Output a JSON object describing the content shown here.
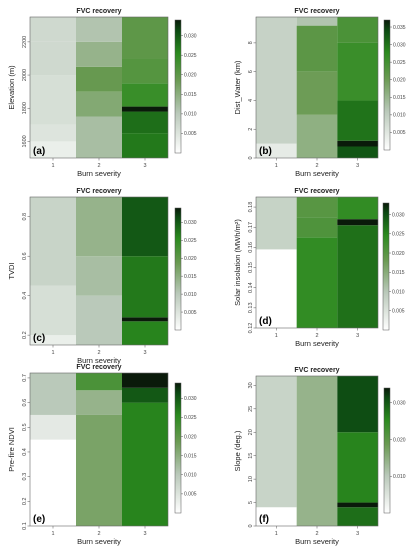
{
  "figure": {
    "panels": [
      {
        "panel_label": "(a)",
        "title": "FVC recovery",
        "xlabel": "Burn severity",
        "ylabel": "Elevation (m)",
        "x_ticks": [
          "1",
          "2",
          "3"
        ],
        "y_ticks": [
          "1600",
          "1800",
          "2000",
          "2200"
        ],
        "colorbar_ticks": [
          "0.005",
          "0.010",
          "0.015",
          "0.020",
          "0.025",
          "0.030"
        ]
      },
      {
        "panel_label": "(b)",
        "title": "FVC recovery",
        "xlabel": "Burn severity",
        "ylabel": "Dist_Water (km)",
        "x_ticks": [
          "1",
          "2",
          "3"
        ],
        "y_ticks": [
          "0",
          "2",
          "4",
          "6",
          "8"
        ],
        "colorbar_ticks": [
          "0.005",
          "0.010",
          "0.015",
          "0.020",
          "0.025",
          "0.030",
          "0.035"
        ]
      },
      {
        "panel_label": "(c)",
        "title": "FVC recovery",
        "xlabel": "Burn severity",
        "ylabel": "TVDI",
        "x_ticks": [
          "1",
          "2",
          "3"
        ],
        "y_ticks": [
          "0.2",
          "0.4",
          "0.6",
          "0.8"
        ],
        "colorbar_ticks": [
          "0.005",
          "0.010",
          "0.015",
          "0.020",
          "0.025",
          "0.030"
        ]
      },
      {
        "panel_label": "(d)",
        "title": "FVC recovery",
        "xlabel": "Burn severity",
        "ylabel": "Solar insolation (MWh/m²)",
        "x_ticks": [
          "1",
          "2",
          "3"
        ],
        "y_ticks": [
          "0.12",
          "0.13",
          "0.14",
          "0.15",
          "0.16",
          "0.17",
          "0.18"
        ],
        "colorbar_ticks": [
          "0.005",
          "0.010",
          "0.015",
          "0.020",
          "0.025",
          "0.030"
        ]
      },
      {
        "panel_label": "(e)",
        "title": "FVC recovery",
        "xlabel": "Burn severity",
        "ylabel": "Pre-fire NDVI",
        "x_ticks": [
          "1",
          "2",
          "3"
        ],
        "y_ticks": [
          "0.1",
          "0.2",
          "0.3",
          "0.4",
          "0.5",
          "0.6",
          "0.7"
        ],
        "colorbar_ticks": [
          "0.005",
          "0.010",
          "0.015",
          "0.020",
          "0.025",
          "0.030"
        ]
      },
      {
        "panel_label": "(f)",
        "title": "FVC recovery",
        "xlabel": "Burn severity",
        "ylabel": "Slope (deg.)",
        "x_ticks": [
          "1",
          "2",
          "3"
        ],
        "y_ticks": [
          "0",
          "5",
          "10",
          "15",
          "20",
          "25",
          "30"
        ],
        "colorbar_ticks": [
          "0.010",
          "0.020",
          "0.030"
        ]
      }
    ]
  },
  "colors": {
    "low": "#ffffff",
    "mid_light": "#b9c8b9",
    "mid": "#6a9a52",
    "green": "#2b8a1e",
    "dark": "#0c4a12",
    "darkest": "#0a1a0a"
  },
  "chart_data": [
    {
      "type": "heatmap",
      "title": "FVC recovery",
      "xlabel": "Burn severity",
      "ylabel": "Elevation (m)",
      "categories": [
        "1",
        "2",
        "3"
      ],
      "y_range": [
        1500,
        2350
      ],
      "colorbar_range": [
        0.0,
        0.034
      ],
      "columns": [
        {
          "category": "1",
          "y_start": 1500,
          "bands": [
            {
              "to": 1600,
              "value": 0.003
            },
            {
              "to": 1700,
              "value": 0.005
            },
            {
              "to": 2000,
              "value": 0.006
            },
            {
              "to": 2200,
              "value": 0.007
            },
            {
              "to": 2350,
              "value": 0.007
            }
          ]
        },
        {
          "category": "2",
          "y_start": 1500,
          "bands": [
            {
              "to": 1750,
              "value": 0.012
            },
            {
              "to": 1900,
              "value": 0.016
            },
            {
              "to": 2050,
              "value": 0.019
            },
            {
              "to": 2200,
              "value": 0.014
            },
            {
              "to": 2350,
              "value": 0.011
            }
          ]
        },
        {
          "category": "3",
          "y_start": 1500,
          "bands": [
            {
              "to": 1650,
              "value": 0.027
            },
            {
              "to": 1780,
              "value": 0.028
            },
            {
              "to": 1810,
              "value": 0.034
            },
            {
              "to": 1950,
              "value": 0.024
            },
            {
              "to": 2100,
              "value": 0.021
            },
            {
              "to": 2350,
              "value": 0.02
            }
          ]
        }
      ]
    },
    {
      "type": "heatmap",
      "title": "FVC recovery",
      "xlabel": "Burn severity",
      "ylabel": "Dist_Water (km)",
      "categories": [
        "1",
        "2",
        "3"
      ],
      "y_range": [
        0,
        9.8
      ],
      "colorbar_range": [
        0.0,
        0.037
      ],
      "columns": [
        {
          "category": "1",
          "y_start": 0,
          "bands": [
            {
              "to": 1,
              "value": 0.004
            },
            {
              "to": 9.8,
              "value": 0.009
            }
          ]
        },
        {
          "category": "2",
          "y_start": 0,
          "bands": [
            {
              "to": 3,
              "value": 0.016
            },
            {
              "to": 6,
              "value": 0.02
            },
            {
              "to": 9.2,
              "value": 0.022
            },
            {
              "to": 9.8,
              "value": 0.012
            }
          ]
        },
        {
          "category": "3",
          "y_start": 0,
          "bands": [
            {
              "to": 0.8,
              "value": 0.033
            },
            {
              "to": 1.2,
              "value": 0.037
            },
            {
              "to": 4,
              "value": 0.03
            },
            {
              "to": 8,
              "value": 0.026
            },
            {
              "to": 9.8,
              "value": 0.024
            }
          ]
        }
      ]
    },
    {
      "type": "heatmap",
      "title": "FVC recovery",
      "xlabel": "Burn severity",
      "ylabel": "TVDI",
      "categories": [
        "1",
        "2",
        "3"
      ],
      "y_range": [
        0.15,
        0.9
      ],
      "colorbar_range": [
        0.0,
        0.034
      ],
      "columns": [
        {
          "category": "1",
          "y_start": 0.15,
          "bands": [
            {
              "to": 0.2,
              "value": 0.003
            },
            {
              "to": 0.45,
              "value": 0.006
            },
            {
              "to": 0.9,
              "value": 0.008
            }
          ]
        },
        {
          "category": "2",
          "y_start": 0.15,
          "bands": [
            {
              "to": 0.4,
              "value": 0.01
            },
            {
              "to": 0.6,
              "value": 0.012
            },
            {
              "to": 0.9,
              "value": 0.014
            }
          ]
        },
        {
          "category": "3",
          "y_start": 0.15,
          "bands": [
            {
              "to": 0.27,
              "value": 0.026
            },
            {
              "to": 0.29,
              "value": 0.034
            },
            {
              "to": 0.6,
              "value": 0.027
            },
            {
              "to": 0.9,
              "value": 0.03
            }
          ]
        }
      ]
    },
    {
      "type": "heatmap",
      "title": "FVC recovery",
      "xlabel": "Burn severity",
      "ylabel": "Solar insolation (MWh/m²)",
      "categories": [
        "1",
        "2",
        "3"
      ],
      "y_range": [
        0.12,
        0.185
      ],
      "colorbar_range": [
        0.0,
        0.033
      ],
      "columns": [
        {
          "category": "1",
          "y_start": 0.12,
          "bands": [
            {
              "to": 0.159,
              "value": 0.0
            },
            {
              "to": 0.185,
              "value": 0.008
            }
          ]
        },
        {
          "category": "2",
          "y_start": 0.12,
          "bands": [
            {
              "to": 0.165,
              "value": 0.024
            },
            {
              "to": 0.175,
              "value": 0.021
            },
            {
              "to": 0.185,
              "value": 0.02
            }
          ]
        },
        {
          "category": "3",
          "y_start": 0.12,
          "bands": [
            {
              "to": 0.171,
              "value": 0.027
            },
            {
              "to": 0.174,
              "value": 0.033
            },
            {
              "to": 0.185,
              "value": 0.024
            }
          ]
        }
      ]
    },
    {
      "type": "heatmap",
      "title": "FVC recovery",
      "xlabel": "Burn severity",
      "ylabel": "Pre-fire NDVI",
      "categories": [
        "1",
        "2",
        "3"
      ],
      "y_range": [
        0.1,
        0.72
      ],
      "colorbar_range": [
        0.0,
        0.034
      ],
      "columns": [
        {
          "category": "1",
          "y_start": 0.1,
          "bands": [
            {
              "to": 0.45,
              "value": 0.0
            },
            {
              "to": 0.55,
              "value": 0.004
            },
            {
              "to": 0.72,
              "value": 0.01
            }
          ]
        },
        {
          "category": "2",
          "y_start": 0.1,
          "bands": [
            {
              "to": 0.55,
              "value": 0.017
            },
            {
              "to": 0.65,
              "value": 0.014
            },
            {
              "to": 0.72,
              "value": 0.022
            }
          ]
        },
        {
          "category": "3",
          "y_start": 0.1,
          "bands": [
            {
              "to": 0.6,
              "value": 0.026
            },
            {
              "to": 0.66,
              "value": 0.03
            },
            {
              "to": 0.72,
              "value": 0.034
            }
          ]
        }
      ]
    },
    {
      "type": "heatmap",
      "title": "FVC recovery",
      "xlabel": "Burn severity",
      "ylabel": "Slope (deg.)",
      "categories": [
        "1",
        "2",
        "3"
      ],
      "y_range": [
        0,
        32
      ],
      "colorbar_range": [
        0.0,
        0.034
      ],
      "columns": [
        {
          "category": "1",
          "y_start": 0,
          "bands": [
            {
              "to": 4,
              "value": 0.0
            },
            {
              "to": 32,
              "value": 0.008
            }
          ]
        },
        {
          "category": "2",
          "y_start": 0,
          "bands": [
            {
              "to": 32,
              "value": 0.014
            }
          ]
        },
        {
          "category": "3",
          "y_start": 0,
          "bands": [
            {
              "to": 4,
              "value": 0.028
            },
            {
              "to": 5,
              "value": 0.034
            },
            {
              "to": 20,
              "value": 0.026
            },
            {
              "to": 32,
              "value": 0.031
            }
          ]
        }
      ]
    }
  ]
}
